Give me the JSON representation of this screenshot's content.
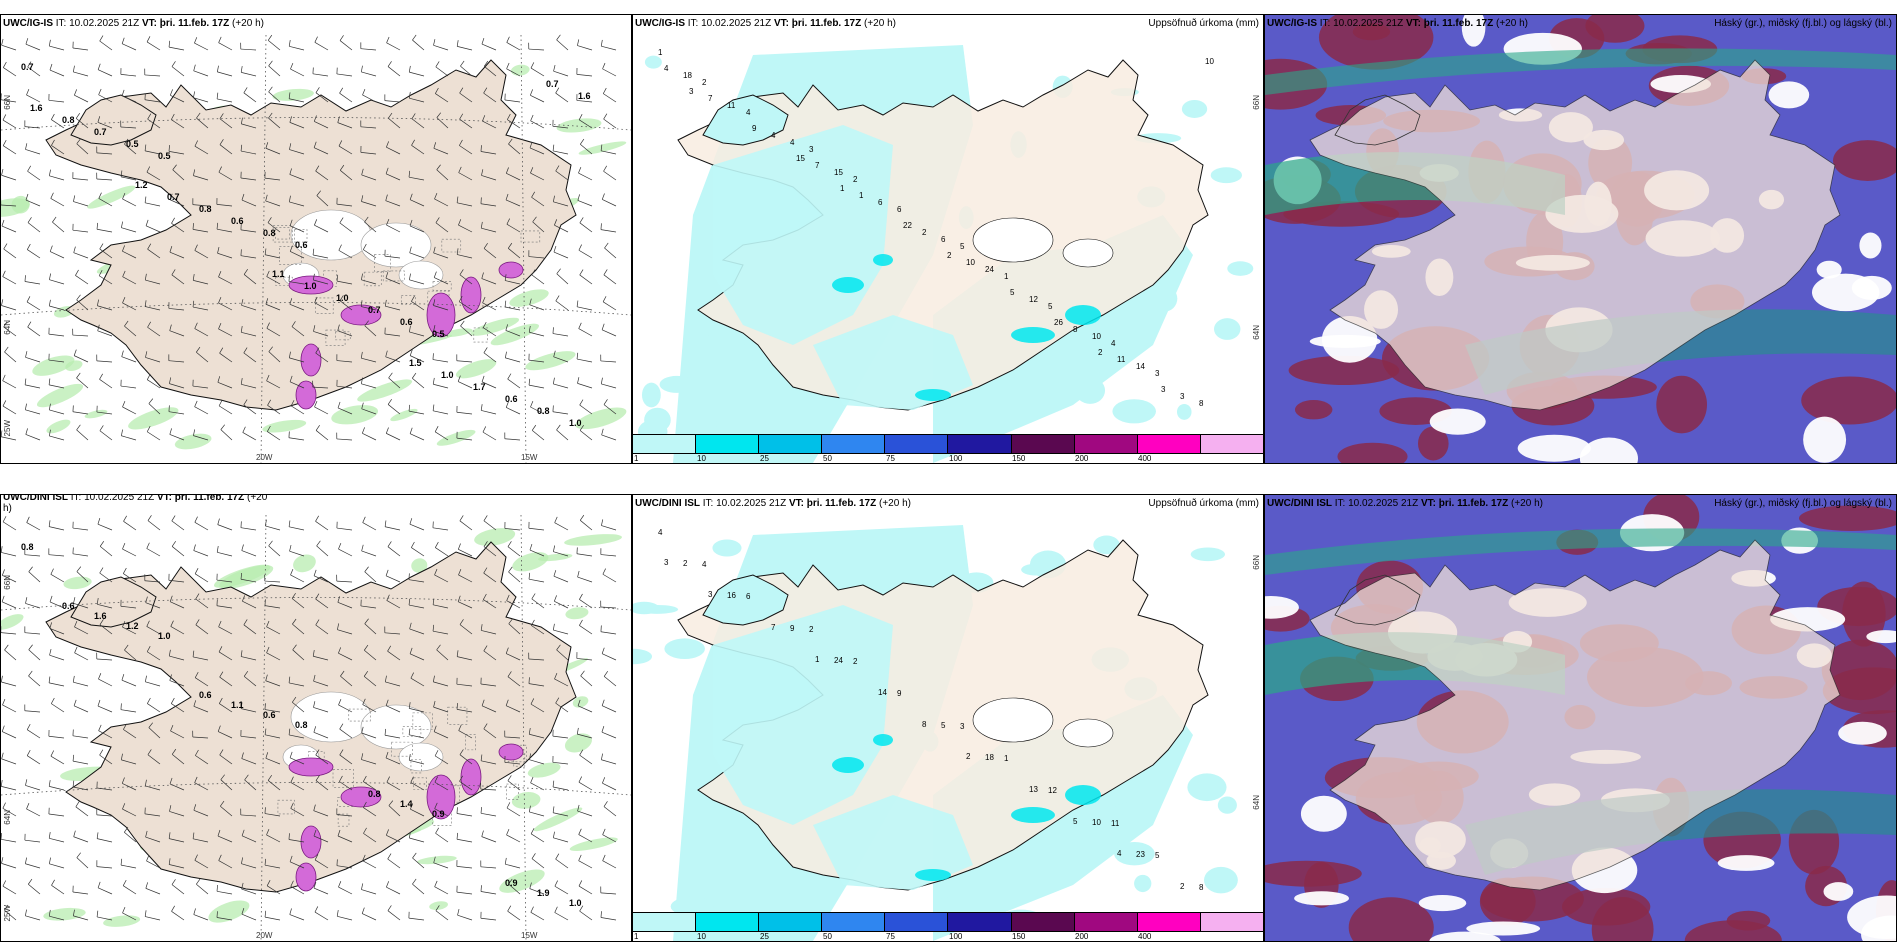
{
  "panels": {
    "top": {
      "left": {
        "model": "UWC/IG-IS",
        "it_label": "IT:",
        "it": "10.02.2025 21Z",
        "vt_label": "VT:",
        "vt": "þri. 11.feb. 17Z",
        "lead": "(+20 h)",
        "right_title": ""
      },
      "middle": {
        "model": "UWC/IG-IS",
        "it_label": "IT:",
        "it": "10.02.2025 21Z",
        "vt_label": "VT:",
        "vt": "þri. 11.feb. 17Z",
        "lead": "(+20 h)",
        "right_title": "Uppsöfnuð úrkoma (mm)"
      },
      "right": {
        "model": "UWC/IG-IS",
        "it_label": "IT:",
        "it": "10.02.2025 21Z",
        "vt_label": "VT:",
        "vt": "þri. 11.feb. 17Z",
        "lead": "(+20 h)",
        "right_title": "Háský (gr.), miðský (fj.bl.) og lágský (bl.)"
      }
    },
    "bottom": {
      "left": {
        "model": "UWC/DINI ISL",
        "it_label": "IT:",
        "it": "10.02.2025 21Z",
        "vt_label": "VT:",
        "vt": "þri. 11.feb. 17Z",
        "lead": "(+20",
        "lead2": "h)",
        "right_title": ""
      },
      "middle": {
        "model": "UWC/DINI ISL",
        "it_label": "IT:",
        "it": "10.02.2025 21Z",
        "vt_label": "VT:",
        "vt": "þri. 11.feb. 17Z",
        "lead": "(+20 h)",
        "right_title": "Uppsöfnuð úrkoma (mm)"
      },
      "right": {
        "model": "UWC/DINI ISL",
        "it_label": "IT:",
        "it": "10.02.2025 21Z",
        "vt_label": "VT:",
        "vt": "þri. 11.feb. 17Z",
        "lead": "(+20 h)",
        "right_title": "Háský (gr.), miðský (fj.bl.) og lágský (bl.)"
      }
    }
  },
  "axes": {
    "lon_20w": "20W",
    "lon_15w": "15W",
    "lon_25w": "25W",
    "lat_66n": "66N",
    "lat_64n": "64N"
  },
  "colorbar": {
    "ticks": [
      "1",
      "10",
      "25",
      "50",
      "75",
      "100",
      "150",
      "200",
      "400"
    ],
    "colors": [
      "#bff7f7",
      "#00e6ef",
      "#00c0e8",
      "#2f86f0",
      "#2a52d8",
      "#2018a0",
      "#5a0850",
      "#a00880",
      "#ff00c0",
      "#f5b0f0"
    ]
  },
  "top_left_labels": [
    "0.7",
    "0.5",
    "0.6",
    "0.5",
    "1.0",
    "0.5",
    "0.8",
    "0.6",
    "0.8",
    "0.7",
    "0.6",
    "0.7",
    "0.6",
    "0.8",
    "0.8",
    "1.0",
    "1.7",
    "1.6",
    "0.7",
    "1.0",
    "1.0",
    "1.6",
    "1.2",
    "1.1",
    "1.5",
    "0.7"
  ],
  "bottom_left_labels": [
    "0.8",
    "1.0",
    "0.8",
    "0.9",
    "1.0",
    "1.2",
    "0.6",
    "1.4",
    "1.9",
    "1.6",
    "1.1",
    "0.8",
    "0.9",
    "0.6",
    "0.6"
  ],
  "top_mid_labels": [
    "1",
    "3",
    "5",
    "4",
    "2",
    "2",
    "1",
    "3",
    "4",
    "6",
    "5",
    "8",
    "4",
    "6",
    "10",
    "18",
    "15",
    "24",
    "14",
    "11",
    "6",
    "12",
    "3",
    "4",
    "2",
    "8",
    "4",
    "7",
    "10",
    "11",
    "7",
    "1",
    "5",
    "3",
    "9",
    "22",
    "26",
    "10",
    "15",
    "2",
    "2",
    "3",
    "1"
  ],
  "bottom_mid_labels": [
    "4",
    "2",
    "3",
    "11",
    "4",
    "2",
    "1",
    "5",
    "6",
    "9",
    "12",
    "8",
    "9",
    "5",
    "10",
    "2",
    "24",
    "18",
    "23",
    "16",
    "14",
    "13",
    "2",
    "7",
    "8",
    "5",
    "3",
    "1",
    "2",
    "4",
    "3"
  ]
}
